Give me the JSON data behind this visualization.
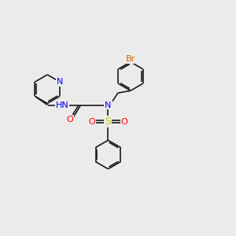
{
  "background_color": "#ebebeb",
  "bond_color": "#1a1a1a",
  "atom_colors": {
    "N": "#0000ff",
    "O": "#ff0000",
    "S": "#cccc00",
    "Br": "#cc6600",
    "H": "#2aa0a0",
    "C": "#1a1a1a"
  },
  "figsize": [
    3.0,
    3.0
  ],
  "dpi": 100
}
